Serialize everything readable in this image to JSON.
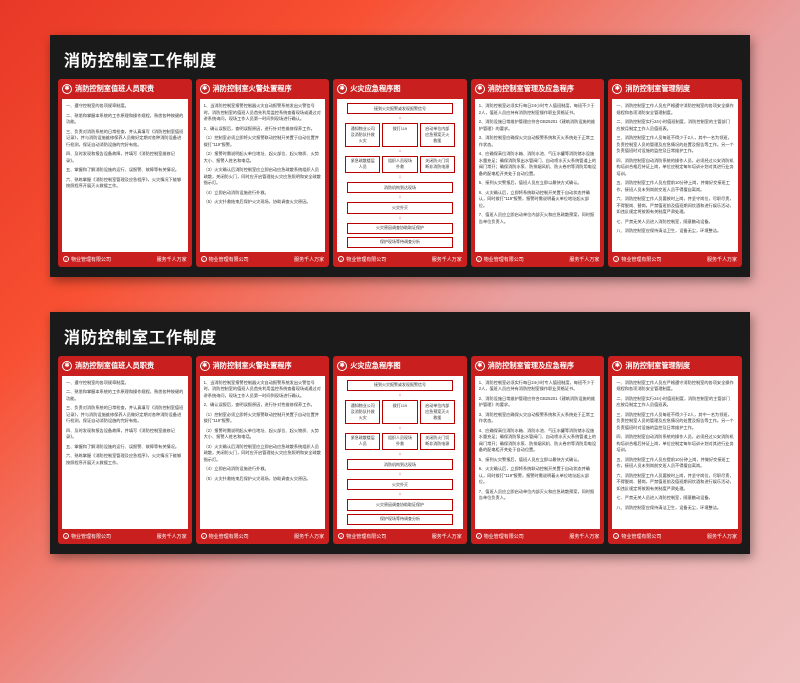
{
  "main_title": "消防控制室工作制度",
  "colors": {
    "board_bg": "#1a1a1a",
    "panel_red": "#c91f1f",
    "body_bg": "#ffffff",
    "text": "#333333",
    "flow_border": "#b00000"
  },
  "footer": {
    "company": "物业管理有限公司",
    "slogan": "服务千人万家"
  },
  "panels": [
    {
      "title": "消防控制室值班人员职责",
      "body": [
        "一、遵守控制室的各项规章制度。",
        "二、熟悉和掌握本系统的工作原理和操作规程，熟悉各种按键的功能。",
        "三、负责对消防系统的日常检查，并认真填写《消防控制室值班记录》，并与消防设施维修保养人员做好定期对各种消防设备进行检测，保证自动消防设施的完好有效。",
        "四、及时发现和报告设备故障，并填写《消防控制室维修记录》。",
        "五、掌握和了解消防设施的运行、误报警、故障等有关情况。",
        "六、熟练掌握《消防控制室管理及应急程序》，火灾情况下能够按照程序开展灭火救援工作。"
      ]
    },
    {
      "title": "消防控制室火警处置程序",
      "body": [
        "1、当消防控制室报警控制器火灾自动报警系统发出火警信号时，消防控制室的值班人员首先利用监控系统查看现场或通过对讲系统询问，现场工作人员第一时间到现场进行确认。",
        "2、确认误报后，查明误报原因，进行针对性维修保养工作。",
        "（1）控制室必须立即将火灾报警联动控制开关置于自动位置并拨打\"119\"报警。",
        "（2）报警时需说明起火单位地址、起火部位、起火物质、火势大小、报警人姓名和电话。",
        "（3）火灾确认后消防控制室应立即启动应急疏散系统组织人员疏散，关闭防火门，同时应开启管理处火灾应急照明和安全疏散指示灯。",
        "（4）立即启动消防设施进行扑救。",
        "（5）火灾扑救结束后保护火灾现场，协助调查火灾原因。"
      ]
    },
    {
      "title": "火灾应急程序图",
      "flow": true,
      "flow_nodes": {
        "top": "接到火灾报警或发现报警信号",
        "row1": [
          "通知物业公司及消防队扑救火灾",
          "拨打119",
          "启动单位内部应急预案灭火救援"
        ],
        "row2": [
          "紧急疏散楼层人员",
          "组织人员现场扑救",
          "关闭防火门切断非消防电源"
        ],
        "mid": "消防机构到达现场",
        "bottom1": "火灾扑灭",
        "bottom2": "火灾原因调查协助取证保护",
        "bottom3": "保护现场等待调查分析"
      }
    },
    {
      "title": "消防控制室管理及应急程序",
      "body": [
        "1、消防控制室必须实行每日24小时专人值班制度，每班不少于2人，值班人员应持有消防控制室操作职业资格证书。",
        "2、消防设施日常维护管理应符合GB25201《建筑消防设施的维护管理》的要求。",
        "3、消防控制室应确保火灾自动报警系统和灭火系统处于正常工作状态。",
        "4、应确保高位消防水箱、消防水池、气压水罐等消防储水设施水量充足；确保消防泵出水管阀门、自动喷水灭火系统管道上的阀门常开；确保消防水泵、防排烟风机、防火卷帘等消防用电设备的配电柜开关处于自动位置。",
        "5、接到火灾警报后，值班人员应立即以最快方式确认。",
        "6、火灾确认后，立即将系统联动控制开关置于自动状态并确认，同时拨打\"119\"报警，报警时需说明着火单位地址起火部位。",
        "7、值班人员应立即启动单位内部灭火和应急疏散预案，同时报告单位负责人。"
      ]
    },
    {
      "title": "消防控制室管理制度",
      "body": [
        "一、消防控制室工作人员应严格遵守消防控制室的各项安全操作规程和各项消防安全管理制度。",
        "二、消防控制室实行24小时值班制度，消防控制室的主管部门应按月制定工作人员值班表。",
        "三、消防控制室工作人员每班不得少于2人，其中一名为领班，负责控制室人员的管理及应急情况的处置及报告等工作。另一个负责值班时对设施的监控及日常维护工作。",
        "四、消防控制室自动消防系统的操作人员，必须经过公安消防机构培训合格后持证上岗，单位应制定每年培训计划对其进行业务培训。",
        "五、消防控制室工作人员应提前10分钟上岗，并做好交接班工作，接班人员未到岗前交班人员不得擅自离岗。",
        "六、消防控制室工作人员要按时上岗，并坚守岗位，尽职尽责，不得脱岗、替岗，严禁值班前及值班期间饮酒和进行娱乐活动，如违反规定将按照有关制度严肃处理。",
        "七、严禁无关人员进入消防控制室，随意触动设备。",
        "八、消防控制室应保持清洁卫生，设备无尘，环境整洁。"
      ]
    }
  ]
}
